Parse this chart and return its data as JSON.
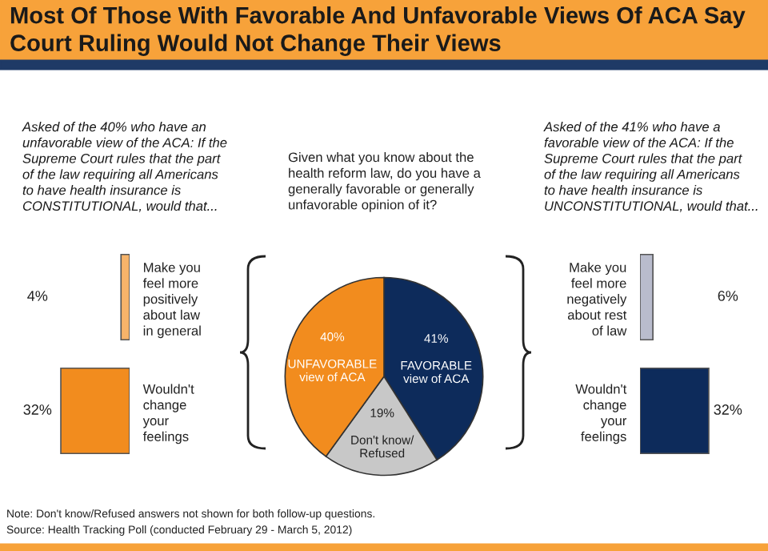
{
  "chart_data": [
    {
      "type": "pie",
      "title": "Most Of Those With Favorable And Unfavorable Views Of ACA Say Court Ruling Would Not Change Their Views",
      "subtitle": "Given what you know about the\nhealth reform law, do you have a\ngenerally favorable or generally\nunfavorable opinion of it?",
      "categories": [
        "FAVORABLE\nview of ACA",
        "Don't know/\nRefused",
        "UNFAVORABLE\nview of ACA"
      ],
      "values": [
        41,
        19,
        40
      ],
      "colors": [
        "#0d2b5b",
        "#c8c8c8",
        "#f28c1e"
      ],
      "value_labels": [
        "41%",
        "19%",
        "40%"
      ],
      "annotations": [
        "Note: Don't know/Refused answers not shown for both follow-up questions.",
        "Source: Health Tracking Poll (conducted February 29 - March 5, 2012)"
      ]
    },
    {
      "type": "bar",
      "orientation": "horizontal",
      "title": "Asked of the 40% who have an\nunfavorable view of the ACA: If the\nSupreme Court rules that the part\nof the law requiring all Americans\nto have health insurance is\nCONSTITUTIONAL, would that...",
      "categories": [
        "Make you\nfeel more\npositively\nabout law\nin general",
        "Wouldn't\nchange\nyour\nfeelings"
      ],
      "values": [
        4,
        32
      ],
      "colors": [
        "#f7b46a",
        "#f28c1e"
      ],
      "value_labels": [
        "4%",
        "32%"
      ],
      "xlim": [
        33.5,
        0
      ],
      "tick_labels": "y"
    },
    {
      "type": "bar",
      "orientation": "horizontal",
      "title": "Asked of the 41% who have a\nfavorable view of the ACA: If the\nSupreme Court rules that the part\nof the law requiring all Americans\nto have health insurance is\nUNCONSTITUTIONAL, would that...",
      "categories": [
        "Make you\nfeel more\nnegatively\nabout rest\nof law",
        "Wouldn't\nchange\nyour\nfeelings"
      ],
      "values": [
        6,
        32
      ],
      "colors": [
        "#b9bccd",
        "#0d2b5b"
      ],
      "value_labels": [
        "6%",
        "32%"
      ],
      "xlim": [
        0,
        33.5
      ],
      "tick_labels": "y"
    }
  ]
}
